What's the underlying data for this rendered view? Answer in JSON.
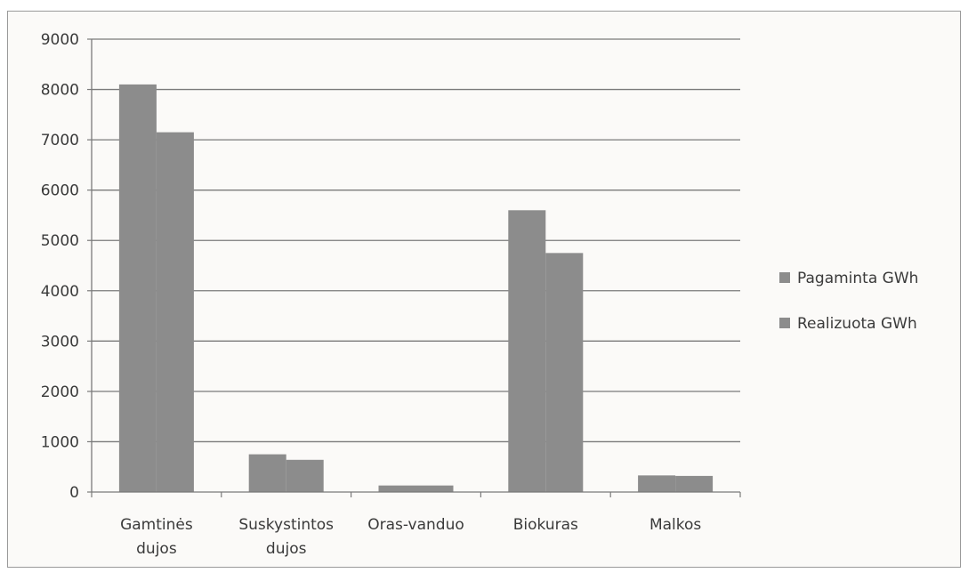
{
  "chart_data": {
    "type": "bar",
    "title": "",
    "xlabel": "",
    "ylabel": "",
    "categories": [
      [
        "Gamtinės",
        "dujos"
      ],
      [
        "Suskystintos",
        "dujos"
      ],
      [
        "Oras-vanduo"
      ],
      [
        "Biokuras"
      ],
      [
        "Malkos"
      ]
    ],
    "series": [
      {
        "name": "Pagaminta GWh",
        "values": [
          8100,
          750,
          130,
          5600,
          330
        ],
        "color": "#8c8c8c"
      },
      {
        "name": "Realizuota GWh",
        "values": [
          7150,
          640,
          130,
          4750,
          320
        ],
        "color": "#8c8c8c"
      }
    ],
    "ylim": [
      0,
      9000
    ],
    "yticks": [
      0,
      1000,
      2000,
      3000,
      4000,
      5000,
      6000,
      7000,
      8000,
      9000
    ],
    "grid": true,
    "legend": "right"
  }
}
